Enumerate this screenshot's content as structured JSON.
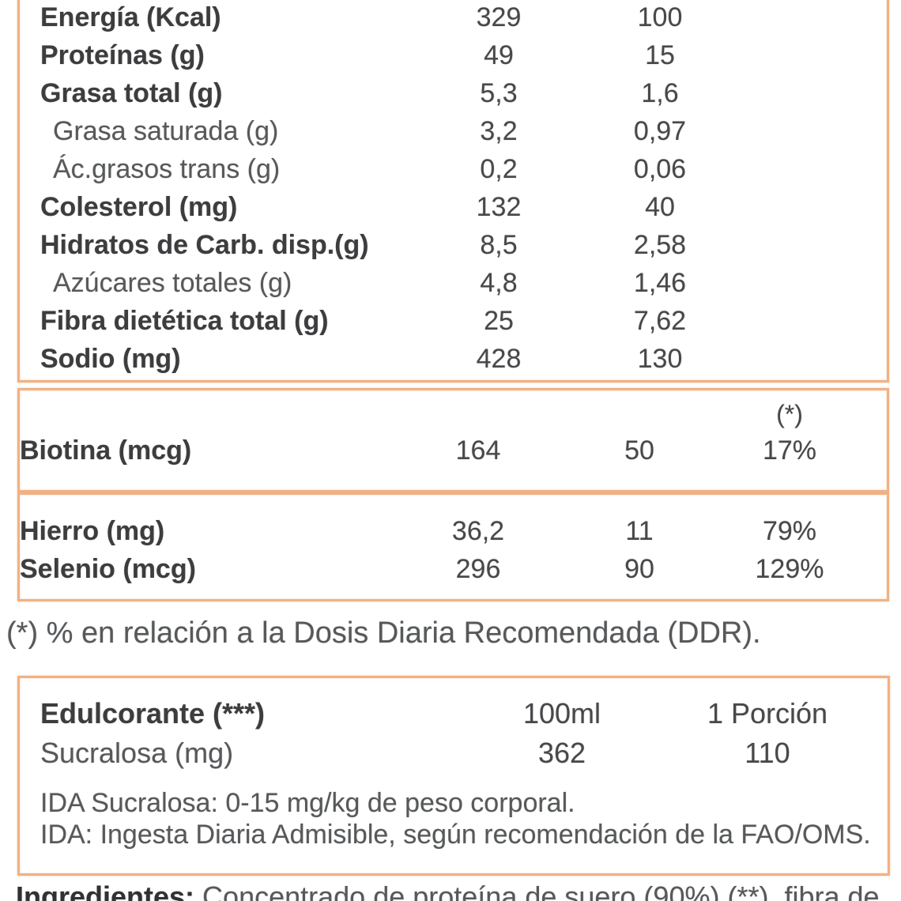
{
  "colors": {
    "border": "#f1b184",
    "text_bold": "#3d3d3f",
    "text_regular": "#56585a",
    "background": "#ffffff"
  },
  "main_table": {
    "rows": [
      {
        "label": "Energía (Kcal)",
        "per100": "329",
        "portion": "100"
      },
      {
        "label": "Proteínas (g)",
        "per100": "49",
        "portion": "15"
      },
      {
        "label": "Grasa total (g)",
        "per100": "5,3",
        "portion": "1,6"
      },
      {
        "label": "Grasa saturada (g)",
        "per100": "3,2",
        "portion": "0,97"
      },
      {
        "label": "Ác.grasos trans (g)",
        "per100": "0,2",
        "portion": "0,06"
      },
      {
        "label": "Colesterol (mg)",
        "per100": "132",
        "portion": "40"
      },
      {
        "label": "Hidratos de Carb. disp.(g)",
        "per100": "8,5",
        "portion": "2,58"
      },
      {
        "label": "Azúcares totales (g)",
        "per100": "4,8",
        "portion": "1,46"
      },
      {
        "label": "Fibra dietética total (g)",
        "per100": "25",
        "portion": "7,62"
      },
      {
        "label": "Sodio (mg)",
        "per100": "428",
        "portion": "130"
      }
    ]
  },
  "vitamins_table": {
    "ddr_header": "(*)",
    "rows": [
      {
        "label": "Biotina (mcg)",
        "per100": "164",
        "portion": "50",
        "ddr": "17%"
      }
    ]
  },
  "minerals_table": {
    "rows": [
      {
        "label": "Hierro (mg)",
        "per100": "36,2",
        "portion": "11",
        "ddr": "79%"
      },
      {
        "label": "Selenio (mcg)",
        "per100": "296",
        "portion": "90",
        "ddr": "129%"
      }
    ]
  },
  "footnote": "(*) % en relación a la Dosis Diaria Recomendada (DDR).",
  "sweetener_table": {
    "header": {
      "label": "Edulcorante (***)",
      "col1": "100ml",
      "col2": "1 Porción"
    },
    "rows": [
      {
        "label": "Sucralosa (mg)",
        "col1": "362",
        "col2": "110"
      }
    ],
    "notes": [
      "IDA Sucralosa: 0-15 mg/kg de peso corporal.",
      "IDA: Ingesta Diaria Admisible, según recomendación de la FAO/OMS."
    ]
  },
  "ingredients": {
    "label": "Ingredientes:",
    "text": " Concentrado de proteína de suero (90%) (**), fibra de"
  }
}
